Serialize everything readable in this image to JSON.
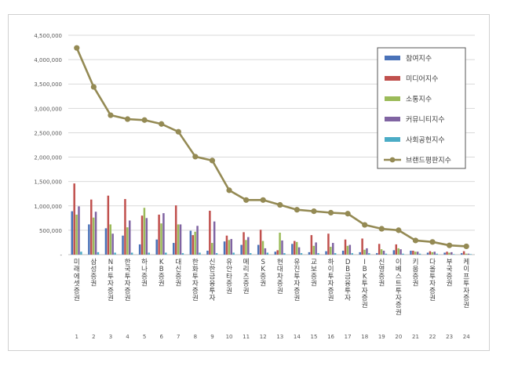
{
  "chart_data": {
    "type": "bar",
    "title": "",
    "xlabel": "",
    "ylabel": "",
    "ylim": [
      0,
      4500000
    ],
    "y_ticks": [
      "-",
      "500,000",
      "1,000,000",
      "1,500,000",
      "2,000,000",
      "2,500,000",
      "3,000,000",
      "3,500,000",
      "4,000,000",
      "4,500,000"
    ],
    "grid": true,
    "legend_position": "top-right",
    "categories": [
      "미래에셋증권",
      "삼성증권",
      "NH투자증권",
      "한국투자증권",
      "하나증권",
      "KB증권",
      "대신증권",
      "한화투자증권",
      "신한금융투자",
      "유안타증권",
      "메리츠증권",
      "SK증권",
      "현대차증권",
      "유진투자증권",
      "교보증권",
      "하이투자증권",
      "DB금융투자",
      "IBK투자증권",
      "신영증권",
      "이베스트투자증권",
      "키움증권",
      "다올투자증권",
      "부국증권",
      "케이프투자증권"
    ],
    "ranks": [
      "1",
      "2",
      "3",
      "4",
      "5",
      "6",
      "7",
      "8",
      "9",
      "10",
      "11",
      "12",
      "13",
      "14",
      "15",
      "16",
      "17",
      "18",
      "19",
      "20",
      "21",
      "22",
      "23",
      "24"
    ],
    "series": [
      {
        "name": "참여지수",
        "color": "#4a72b8",
        "kind": "bar",
        "values": [
          890000,
          620000,
          540000,
          390000,
          210000,
          310000,
          240000,
          490000,
          80000,
          270000,
          200000,
          200000,
          60000,
          220000,
          50000,
          70000,
          80000,
          50000,
          30000,
          90000,
          80000,
          40000,
          40000,
          30000
        ]
      },
      {
        "name": "미디어지수",
        "color": "#c0504d",
        "kind": "bar",
        "values": [
          1460000,
          1130000,
          1210000,
          1140000,
          800000,
          820000,
          1010000,
          400000,
          900000,
          390000,
          460000,
          510000,
          90000,
          280000,
          400000,
          430000,
          310000,
          330000,
          220000,
          210000,
          80000,
          70000,
          60000,
          70000
        ]
      },
      {
        "name": "소통지수",
        "color": "#9bbb59",
        "kind": "bar",
        "values": [
          820000,
          760000,
          620000,
          560000,
          960000,
          640000,
          620000,
          470000,
          240000,
          300000,
          300000,
          280000,
          450000,
          260000,
          180000,
          160000,
          180000,
          100000,
          110000,
          130000,
          60000,
          50000,
          40000,
          20000
        ]
      },
      {
        "name": "커뮤니티지수",
        "color": "#8064a2",
        "kind": "bar",
        "values": [
          990000,
          880000,
          430000,
          700000,
          750000,
          850000,
          620000,
          590000,
          680000,
          320000,
          360000,
          130000,
          290000,
          150000,
          250000,
          240000,
          200000,
          130000,
          80000,
          110000,
          60000,
          60000,
          50000,
          20000
        ]
      },
      {
        "name": "사회공헌지수",
        "color": "#4bacc6",
        "kind": "bar",
        "values": [
          60000,
          50000,
          40000,
          40000,
          40000,
          40000,
          30000,
          40000,
          30000,
          40000,
          30000,
          40000,
          30000,
          30000,
          30000,
          30000,
          30000,
          30000,
          20000,
          20000,
          20000,
          20000,
          10000,
          10000
        ]
      },
      {
        "name": "브랜드평판지수",
        "color": "#948a54",
        "kind": "line",
        "values": [
          4240000,
          3440000,
          2860000,
          2780000,
          2760000,
          2680000,
          2520000,
          2010000,
          1930000,
          1320000,
          1120000,
          1120000,
          1020000,
          920000,
          890000,
          860000,
          840000,
          610000,
          530000,
          500000,
          290000,
          260000,
          190000,
          170000
        ]
      }
    ]
  }
}
